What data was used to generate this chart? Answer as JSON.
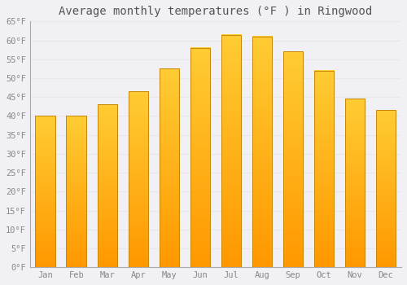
{
  "title": "Average monthly temperatures (°F ) in Ringwood",
  "months": [
    "Jan",
    "Feb",
    "Mar",
    "Apr",
    "May",
    "Jun",
    "Jul",
    "Aug",
    "Sep",
    "Oct",
    "Nov",
    "Dec"
  ],
  "values": [
    40.0,
    40.0,
    43.0,
    46.5,
    52.5,
    58.0,
    61.5,
    61.0,
    57.0,
    52.0,
    44.5,
    41.5
  ],
  "bar_color": "#FFA520",
  "bar_edge_color": "#C8860A",
  "ylim": [
    0,
    65
  ],
  "yticks": [
    0,
    5,
    10,
    15,
    20,
    25,
    30,
    35,
    40,
    45,
    50,
    55,
    60,
    65
  ],
  "ytick_labels": [
    "0°F",
    "5°F",
    "10°F",
    "15°F",
    "20°F",
    "25°F",
    "30°F",
    "35°F",
    "40°F",
    "45°F",
    "50°F",
    "55°F",
    "60°F",
    "65°F"
  ],
  "background_color": "#f0f0f5",
  "grid_color": "#e8e8e8",
  "title_fontsize": 10,
  "tick_fontsize": 7.5,
  "bar_width": 0.65,
  "tick_color": "#888888"
}
